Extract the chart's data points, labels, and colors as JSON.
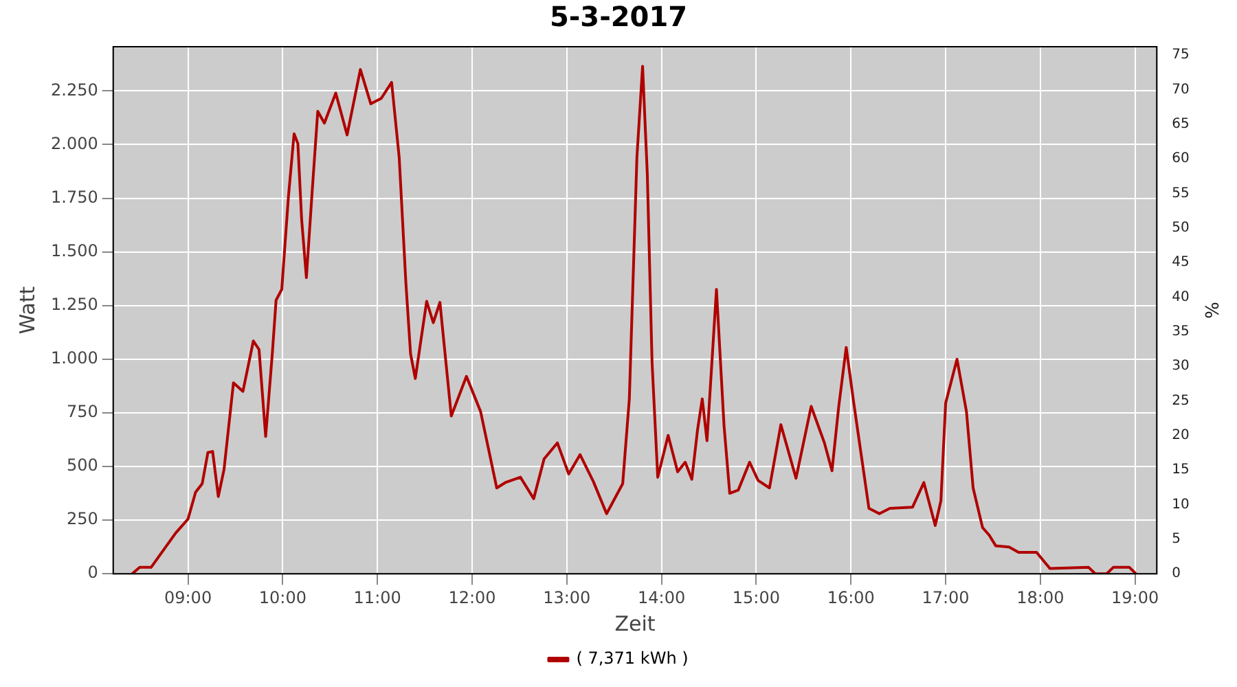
{
  "chart_data": {
    "type": "line",
    "title": "5-3-2017",
    "xlabel": "Zeit",
    "ylabel": "Watt",
    "y2label": "%",
    "xlim": [
      8.21,
      19.23
    ],
    "xticks": [
      {
        "value": 9,
        "label": "09:00"
      },
      {
        "value": 10,
        "label": "10:00"
      },
      {
        "value": 11,
        "label": "11:00"
      },
      {
        "value": 12,
        "label": "12:00"
      },
      {
        "value": 13,
        "label": "13:00"
      },
      {
        "value": 14,
        "label": "14:00"
      },
      {
        "value": 15,
        "label": "15:00"
      },
      {
        "value": 16,
        "label": "16:00"
      },
      {
        "value": 17,
        "label": "17:00"
      },
      {
        "value": 18,
        "label": "18:00"
      },
      {
        "value": 19,
        "label": "19:00"
      }
    ],
    "ylim": [
      0,
      2456
    ],
    "yticks": [
      0,
      250,
      500,
      750,
      {
        "value": 1000,
        "label": "1.000"
      },
      {
        "value": 1250,
        "label": "1.250"
      },
      {
        "value": 1500,
        "label": "1.500"
      },
      {
        "value": 1750,
        "label": "1.750"
      },
      {
        "value": 2000,
        "label": "2.000"
      },
      {
        "value": 2250,
        "label": "2.250"
      }
    ],
    "y2lim": [
      0,
      76.2
    ],
    "y2ticks": [
      0,
      5,
      10,
      15,
      20,
      25,
      30,
      35,
      40,
      45,
      50,
      55,
      60,
      65,
      70,
      75
    ],
    "grid": true,
    "legend": "bottom",
    "marker": "none",
    "line_style": "solid",
    "series": [
      {
        "name": "( 7,371 kWh )",
        "color": "#b00000",
        "x": [
          8.41,
          8.49,
          8.61,
          8.87,
          9.0,
          9.08,
          9.15,
          9.21,
          9.26,
          9.32,
          9.38,
          9.48,
          9.58,
          9.69,
          9.75,
          9.82,
          9.89,
          9.93,
          9.99,
          10.06,
          10.12,
          10.16,
          10.2,
          10.25,
          10.31,
          10.37,
          10.44,
          10.56,
          10.68,
          10.82,
          10.93,
          11.04,
          11.15,
          11.23,
          11.3,
          11.35,
          11.4,
          11.52,
          11.59,
          11.66,
          11.78,
          11.94,
          12.09,
          12.26,
          12.35,
          12.51,
          12.65,
          12.76,
          12.9,
          13.02,
          13.14,
          13.28,
          13.42,
          13.59,
          13.66,
          13.74,
          13.8,
          13.85,
          13.9,
          13.96,
          14.07,
          14.17,
          14.25,
          14.32,
          14.38,
          14.43,
          14.48,
          14.58,
          14.66,
          14.72,
          14.81,
          14.93,
          15.02,
          15.14,
          15.26,
          15.42,
          15.58,
          15.72,
          15.8,
          15.87,
          15.95,
          16.03,
          16.19,
          16.3,
          16.41,
          16.65,
          16.77,
          16.89,
          16.95,
          17.0,
          17.12,
          17.22,
          17.29,
          17.39,
          17.46,
          17.53,
          17.67,
          17.77,
          17.96,
          18.1,
          18.51,
          18.58,
          18.7,
          18.77,
          18.94,
          19.01
        ],
        "values": [
          0,
          30,
          30,
          190,
          255,
          380,
          420,
          565,
          570,
          360,
          485,
          890,
          850,
          1085,
          1045,
          640,
          1025,
          1275,
          1325,
          1755,
          2050,
          2005,
          1650,
          1380,
          1775,
          2155,
          2100,
          2240,
          2045,
          2350,
          2190,
          2215,
          2290,
          1940,
          1360,
          1025,
          910,
          1270,
          1170,
          1265,
          735,
          920,
          755,
          400,
          425,
          450,
          350,
          535,
          610,
          465,
          555,
          430,
          280,
          420,
          815,
          1940,
          2365,
          1860,
          985,
          450,
          645,
          475,
          520,
          440,
          670,
          815,
          620,
          1325,
          690,
          375,
          390,
          520,
          435,
          400,
          695,
          445,
          780,
          610,
          480,
          775,
          1055,
          795,
          305,
          280,
          305,
          310,
          425,
          225,
          340,
          795,
          1000,
          755,
          400,
          215,
          180,
          130,
          125,
          100,
          100,
          25,
          30,
          0,
          0,
          30,
          30,
          0
        ]
      }
    ]
  }
}
